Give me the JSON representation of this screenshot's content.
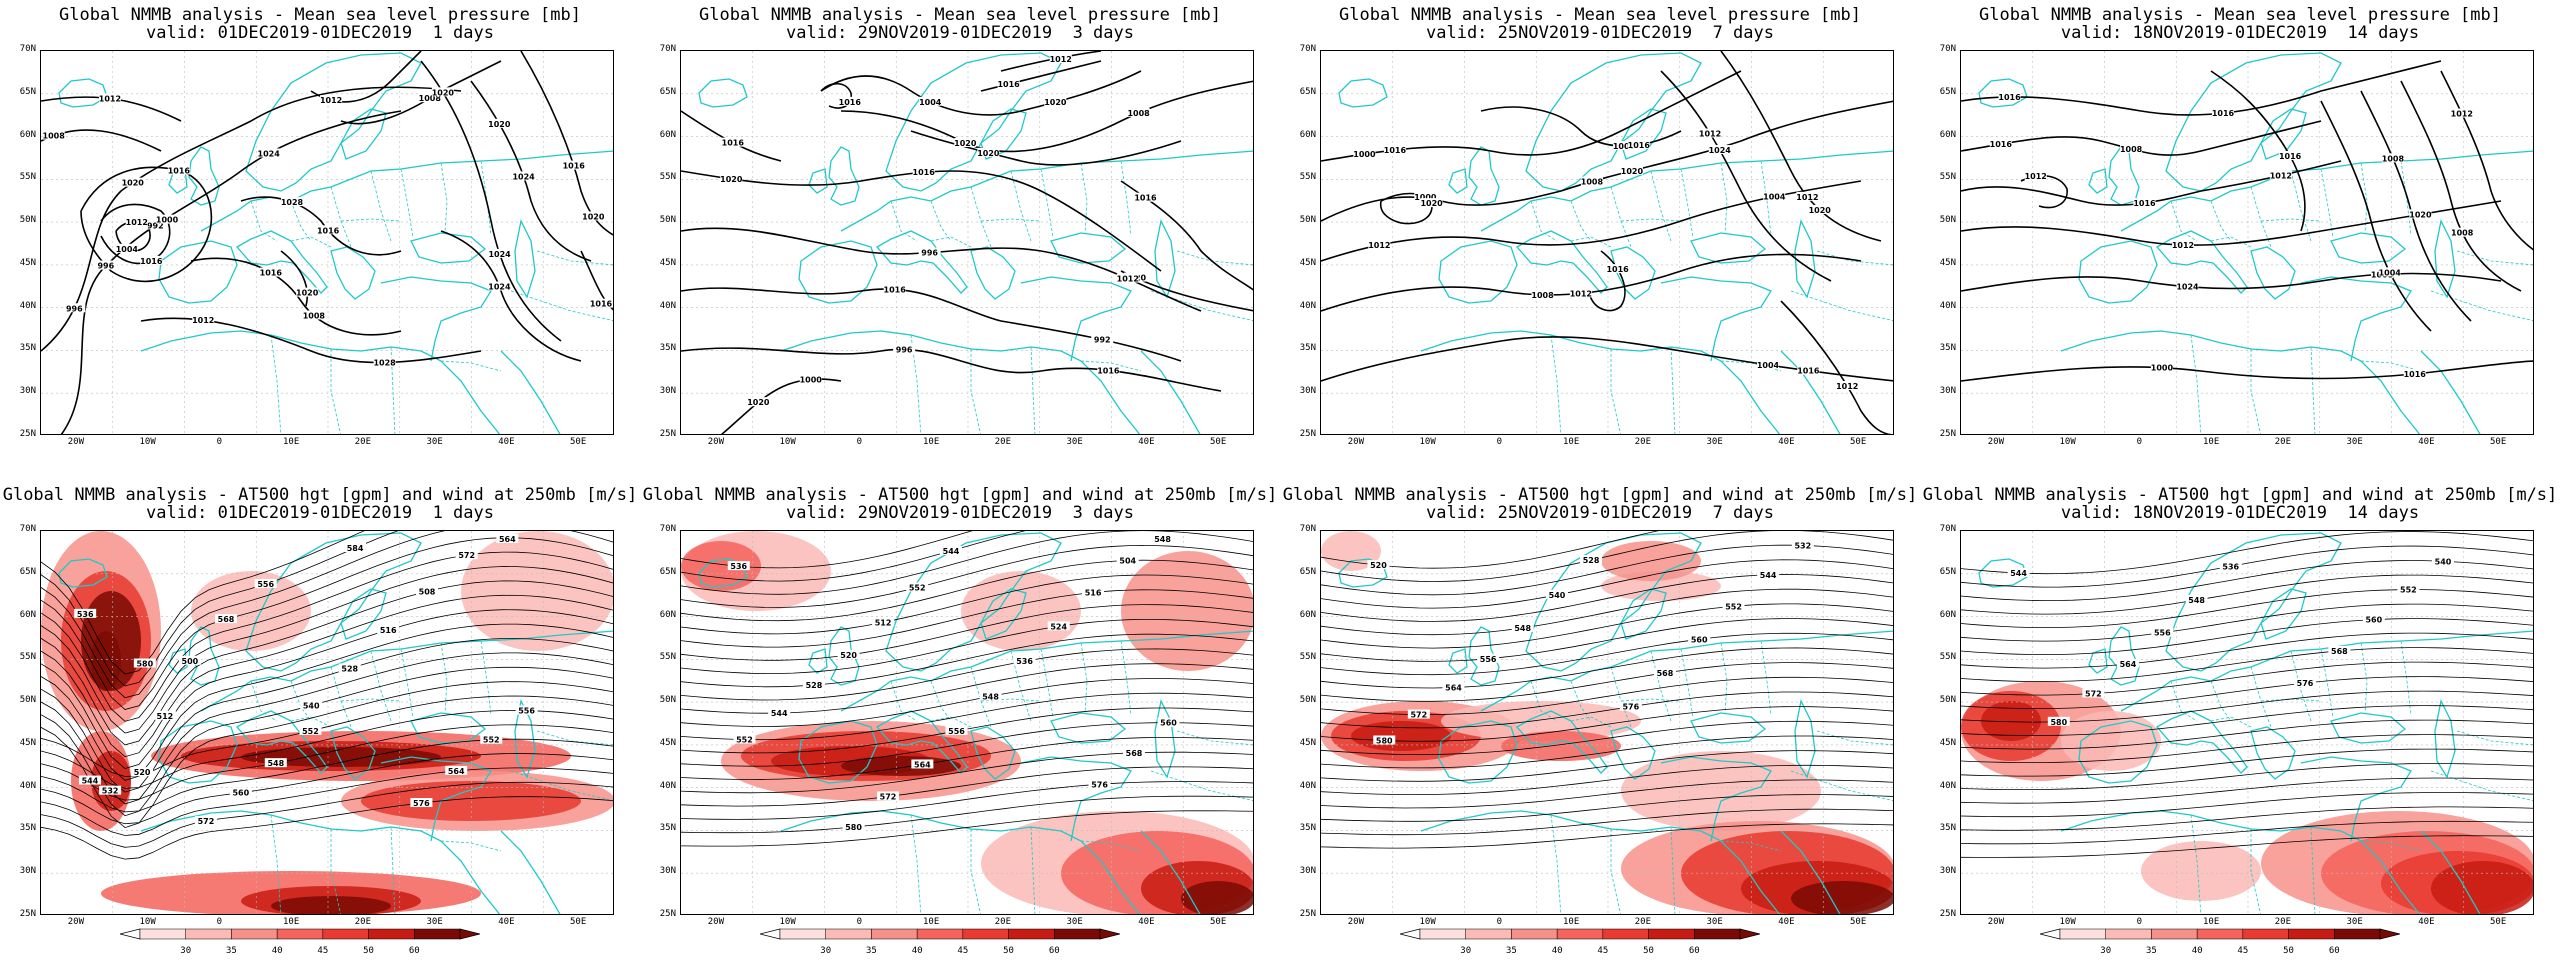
{
  "panels": [
    {
      "id": "p00",
      "row": 0,
      "col": 0,
      "type": "mslp",
      "title1": "Global NMMB analysis - Mean sea level pressure [mb]",
      "title2": "valid: 01DEC2019-01DEC2019  1 days",
      "contour_labels": [
        "996",
        "992",
        "996",
        "1000",
        "1004",
        "1016",
        "1028",
        "1028",
        "1024",
        "1020",
        "1016",
        "1012",
        "1008",
        "1008",
        "1012",
        "1016",
        "1024",
        "1020",
        "1020",
        "1024",
        "1016",
        "1016",
        "1012",
        "1008",
        "1012",
        "1016",
        "1020",
        "1024",
        "1020"
      ]
    },
    {
      "id": "p01",
      "row": 0,
      "col": 1,
      "type": "mslp",
      "title1": "Global NMMB analysis - Mean sea level pressure [mb]",
      "title2": "valid: 29NOV2019-01DEC2019  3 days",
      "contour_labels": [
        "1020",
        "996",
        "992",
        "996",
        "1000",
        "1004",
        "1008",
        "1020",
        "1016",
        "1016",
        "1012",
        "1016",
        "1016",
        "1020",
        "1016",
        "1012",
        "1016",
        "1016",
        "1020",
        "1020",
        "1020"
      ]
    },
    {
      "id": "p02",
      "row": 0,
      "col": 2,
      "type": "mslp",
      "title1": "Global NMMB analysis - Mean sea level pressure [mb]",
      "title2": "valid: 25NOV2019-01DEC2019  7 days",
      "contour_labels": [
        "1000",
        "1008",
        "1004",
        "1008",
        "1004",
        "1000",
        "1008",
        "1012",
        "1012",
        "1016",
        "1012",
        "1016",
        "1020",
        "1012",
        "1012",
        "1016",
        "1020",
        "1016",
        "1024",
        "1020"
      ]
    },
    {
      "id": "p03",
      "row": 0,
      "col": 3,
      "type": "mslp",
      "title1": "Global NMMB analysis - Mean sea level pressure [mb]",
      "title2": "valid: 18NOV2019-01DEC2019  14 days",
      "contour_labels": [
        "1016",
        "1008",
        "1012",
        "1012",
        "1008",
        "1000",
        "1004",
        "1008",
        "1008",
        "1012",
        "1016",
        "1012",
        "1016",
        "1016",
        "1016",
        "1020",
        "1024",
        "1016"
      ]
    },
    {
      "id": "p10",
      "row": 1,
      "col": 0,
      "type": "hgt",
      "title1": "Global NMMB analysis - AT500 hgt [gpm] and wind at 250mb [m/s]",
      "title2": "valid: 01DEC2019-01DEC2019  1 days",
      "contour_labels": [
        "536",
        "556",
        "564",
        "568",
        "572",
        "500",
        "508",
        "512",
        "516",
        "520",
        "528",
        "532",
        "540",
        "544",
        "552",
        "556",
        "548",
        "552",
        "560",
        "564",
        "572",
        "576",
        "580",
        "584"
      ]
    },
    {
      "id": "p11",
      "row": 1,
      "col": 1,
      "type": "hgt",
      "title1": "Global NMMB analysis - AT500 hgt [gpm] and wind at 250mb [m/s]",
      "title2": "valid: 29NOV2019-01DEC2019  3 days",
      "contour_labels": [
        "536",
        "544",
        "548",
        "552",
        "504",
        "512",
        "516",
        "520",
        "524",
        "528",
        "536",
        "544",
        "548",
        "552",
        "556",
        "560",
        "564",
        "568",
        "572",
        "576",
        "580"
      ]
    },
    {
      "id": "p12",
      "row": 1,
      "col": 2,
      "type": "hgt",
      "title1": "Global NMMB analysis - AT500 hgt [gpm] and wind at 250mb [m/s]",
      "title2": "valid: 25NOV2019-01DEC2019  7 days",
      "contour_labels": [
        "520",
        "528",
        "532",
        "540",
        "544",
        "548",
        "552",
        "556",
        "560",
        "564",
        "568",
        "572",
        "576",
        "580"
      ]
    },
    {
      "id": "p13",
      "row": 1,
      "col": 3,
      "type": "hgt",
      "title1": "Global NMMB analysis - AT500 hgt [gpm] and wind at 250mb [m/s]",
      "title2": "valid: 18NOV2019-01DEC2019  14 days",
      "contour_labels": [
        "544",
        "536",
        "540",
        "548",
        "552",
        "556",
        "560",
        "564",
        "568",
        "572",
        "576",
        "580"
      ]
    }
  ],
  "axes": {
    "lat_labels": [
      "70N",
      "65N",
      "60N",
      "55N",
      "50N",
      "45N",
      "40N",
      "35N",
      "30N",
      "25N"
    ],
    "lon_labels": [
      "20W",
      "10W",
      "0",
      "10E",
      "20E",
      "30E",
      "40E",
      "50E"
    ]
  },
  "colorbar": {
    "labels": [
      "30",
      "35",
      "40",
      "45",
      "50",
      "60"
    ],
    "colors": [
      "#fde0de",
      "#fbbab6",
      "#f8908a",
      "#f4635c",
      "#e83a30",
      "#c81b12",
      "#7a0a05"
    ]
  },
  "colors": {
    "coast": "#20c8c8",
    "contour": "#000000",
    "frame": "#000000"
  }
}
